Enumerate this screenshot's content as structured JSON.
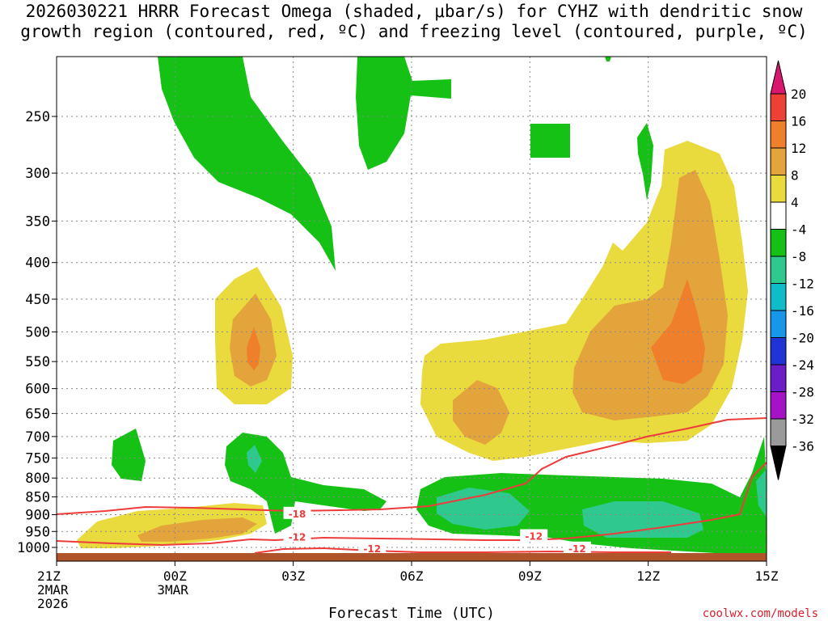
{
  "title": {
    "line1": "2026030221 HRRR Forecast Omega (shaded, μbar/s) for CYHZ with dendritic snow",
    "line2": "growth region (contoured, red, ºC) and freezing level (contoured, purple, ºC)"
  },
  "chart_data": {
    "type": "heatmap",
    "xlabel": "Forecast Time (UTC)",
    "ylabel": "",
    "x_ticks": [
      {
        "hour": 0,
        "lines": [
          "21Z",
          "2MAR",
          "2026"
        ]
      },
      {
        "hour": 3,
        "lines": [
          "00Z",
          "3MAR"
        ]
      },
      {
        "hour": 6,
        "lines": [
          "03Z"
        ]
      },
      {
        "hour": 9,
        "lines": [
          "06Z"
        ]
      },
      {
        "hour": 12,
        "lines": [
          "09Z"
        ]
      },
      {
        "hour": 15,
        "lines": [
          "12Z"
        ]
      },
      {
        "hour": 18,
        "lines": [
          "15Z"
        ]
      }
    ],
    "x_range_hours": [
      0,
      18
    ],
    "y_ticks_hPa": [
      250,
      300,
      350,
      400,
      450,
      500,
      550,
      600,
      650,
      700,
      750,
      800,
      850,
      900,
      950,
      1000
    ],
    "y_range_hPa": [
      200,
      1025
    ],
    "colorbar": {
      "labels": [
        "20",
        "16",
        "12",
        "8",
        "4",
        "-4",
        "-8",
        "-12",
        "-16",
        "-20",
        "-24",
        "-28",
        "-32",
        "-36"
      ],
      "colors": [
        "#d9176f",
        "#ee4136",
        "#ef7f2a",
        "#e3a43c",
        "#e9da3e",
        "#ffffff",
        "#16c116",
        "#2fc88f",
        "#10bcc8",
        "#1896ea",
        "#2034d6",
        "#6b1dc8",
        "#a613c7",
        "#9a9a9a",
        "#000000"
      ]
    },
    "contour_labels": [
      {
        "value": "-18",
        "hour": 6.1,
        "p": 896
      },
      {
        "value": "-12",
        "hour": 6.1,
        "p": 965
      },
      {
        "value": "-12",
        "hour": 12.1,
        "p": 963
      },
      {
        "value": "-12",
        "hour": 8.0,
        "p": 1002
      },
      {
        "value": "-12",
        "hour": 13.2,
        "p": 1002
      }
    ],
    "terrain_color": "#b0542c",
    "contour_color": "#ee3b3b",
    "credit": "coolwx.com/models"
  }
}
